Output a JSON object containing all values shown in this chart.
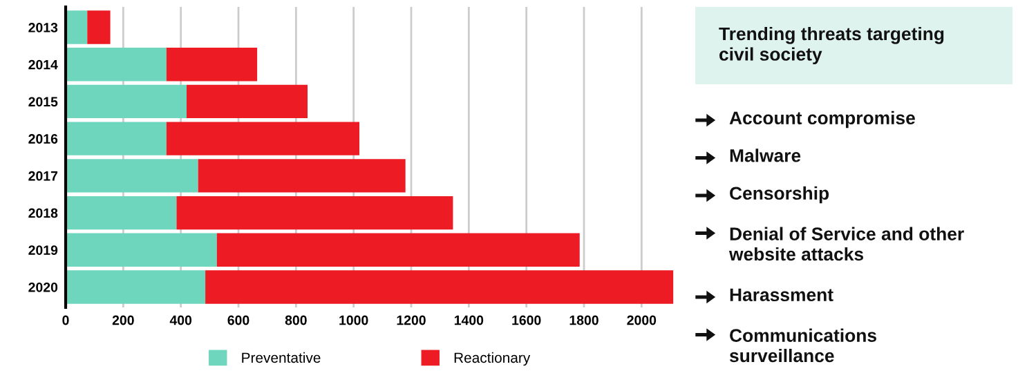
{
  "chart_data": {
    "type": "bar",
    "orientation": "horizontal",
    "stacked": true,
    "title": "Trending threats targeting\ncivil society",
    "categories": [
      "2013",
      "2014",
      "2015",
      "2016",
      "2017",
      "2018",
      "2019",
      "2020"
    ],
    "series": [
      {
        "name": "Preventative",
        "color": "#6fd6be",
        "values": [
          75,
          350,
          420,
          350,
          460,
          385,
          525,
          485
        ]
      },
      {
        "name": "Reactionary",
        "color": "#ed1c24",
        "values": [
          80,
          315,
          420,
          670,
          720,
          960,
          1260,
          1625
        ]
      }
    ],
    "xlim": [
      0,
      2112
    ],
    "xticks": [
      0,
      200,
      400,
      600,
      800,
      1000,
      1200,
      1400,
      1600,
      1800,
      2000
    ],
    "grid": "x",
    "legend": "bottom",
    "annotations": [
      "Account compromise",
      "Malware",
      "Censorship",
      "Denial of Service and other\nwebsite attacks",
      "Harassment",
      "Communications\nsurveillance"
    ]
  }
}
